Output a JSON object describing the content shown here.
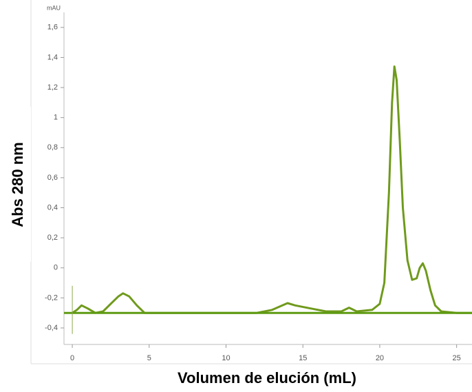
{
  "chart_data": {
    "type": "line",
    "ylabel": "Abs 280 nm",
    "xlabel": "Volumen de elución (mL)",
    "yunit": "mAU",
    "xlim": [
      -0.54,
      26
    ],
    "ylim": [
      -0.51,
      1.7
    ],
    "xticks": [
      0,
      5,
      10,
      15,
      20,
      25
    ],
    "yticks": [
      {
        "value": -0.4,
        "label": "-0,4"
      },
      {
        "value": -0.2,
        "label": "-0,2"
      },
      0,
      {
        "value": 0.2,
        "label": "0,2"
      },
      {
        "value": 0.4,
        "label": "0,4"
      },
      {
        "value": 0.6,
        "label": "0,6"
      },
      {
        "value": 0.8,
        "label": "0,8"
      },
      1,
      {
        "value": 1.2,
        "label": "1,2"
      },
      {
        "value": 1.4,
        "label": "1,4"
      },
      {
        "value": 1.6,
        "label": "1,6"
      }
    ],
    "series": [
      {
        "color": "#6f9a1c",
        "width": 3,
        "x": [
          0,
          0.3,
          0.6,
          1.0,
          1.5,
          2.0,
          2.5,
          3.0,
          3.3,
          3.7,
          4.2,
          4.7,
          5,
          8,
          10,
          12,
          13,
          14,
          14.5,
          15.5,
          16.5,
          17.5,
          18,
          18.5,
          19.5,
          20,
          20.3,
          20.6,
          20.8,
          20.95,
          21.1,
          21.3,
          21.5,
          21.8,
          22.1,
          22.4,
          22.6,
          22.8,
          23.0,
          23.3,
          23.6,
          24,
          25,
          26
        ],
        "values": [
          -0.3,
          -0.28,
          -0.25,
          -0.27,
          -0.3,
          -0.29,
          -0.24,
          -0.19,
          -0.17,
          -0.19,
          -0.25,
          -0.3,
          -0.3,
          -0.3,
          -0.3,
          -0.3,
          -0.28,
          -0.235,
          -0.25,
          -0.27,
          -0.29,
          -0.29,
          -0.265,
          -0.29,
          -0.28,
          -0.24,
          -0.1,
          0.5,
          1.1,
          1.34,
          1.25,
          0.85,
          0.4,
          0.05,
          -0.08,
          -0.07,
          0.0,
          0.03,
          -0.02,
          -0.15,
          -0.25,
          -0.29,
          -0.3,
          -0.3
        ]
      },
      {
        "color": "#5e9a12",
        "width": 3,
        "x": [
          -0.54,
          26
        ],
        "values": [
          -0.3,
          -0.3
        ]
      },
      {
        "color": "#8aa84a",
        "width": 1,
        "x": [
          0,
          0
        ],
        "values": [
          -0.44,
          -0.12
        ]
      }
    ]
  }
}
